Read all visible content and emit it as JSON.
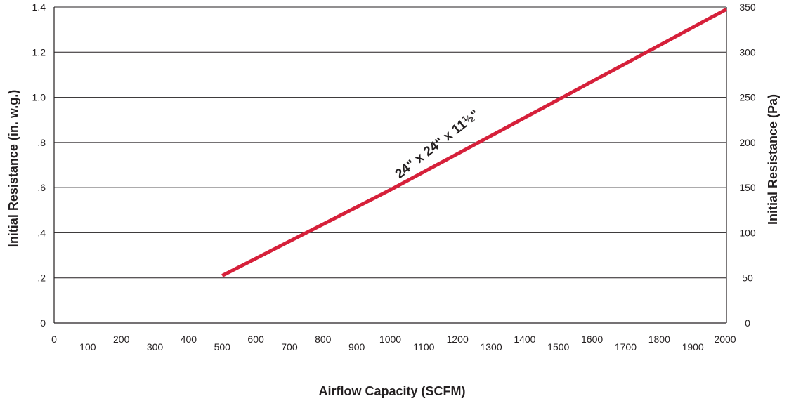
{
  "chart_data": {
    "type": "line",
    "xlabel": "Airflow Capacity (SCFM)",
    "ylabel": "Initial Resistance (in. w.g.)",
    "y2label": "Initial Resistance (Pa)",
    "xlim": [
      0,
      2000
    ],
    "ylim": [
      0,
      1.4
    ],
    "y2lim": [
      0,
      350
    ],
    "x_ticks": [
      0,
      100,
      200,
      300,
      400,
      500,
      600,
      700,
      800,
      900,
      1000,
      1100,
      1200,
      1300,
      1400,
      1500,
      1600,
      1700,
      1800,
      1900,
      2000
    ],
    "x_tick_labels": [
      "0",
      "100",
      "200",
      "300",
      "400",
      "500",
      "600",
      "700",
      "800",
      "900",
      "1000",
      "1100",
      "1200",
      "1300",
      "1400",
      "1500",
      "1600",
      "1700",
      "1800",
      "1900",
      "2000"
    ],
    "y_ticks": [
      0,
      0.2,
      0.4,
      0.6,
      0.8,
      1.0,
      1.2,
      1.4
    ],
    "y_tick_labels": [
      "0",
      ".2",
      ".4",
      ".6",
      ".8",
      "1.0",
      "1.2",
      "1.4"
    ],
    "y2_ticks": [
      0,
      50,
      100,
      150,
      200,
      250,
      300,
      350
    ],
    "y2_tick_labels": [
      "0",
      "50",
      "100",
      "150",
      "200",
      "250",
      "300",
      "350"
    ],
    "grid": "horizontal",
    "series": [
      {
        "label_main": "24\" x 24\" x 11",
        "label_frac_num": "1",
        "label_frac_sep": "⁄",
        "label_frac_den": "2",
        "label_close": "\"",
        "color": "#d6203a",
        "x": [
          500,
          1000,
          1500,
          2000
        ],
        "y": [
          0.21,
          0.59,
          0.99,
          1.39
        ]
      }
    ]
  }
}
